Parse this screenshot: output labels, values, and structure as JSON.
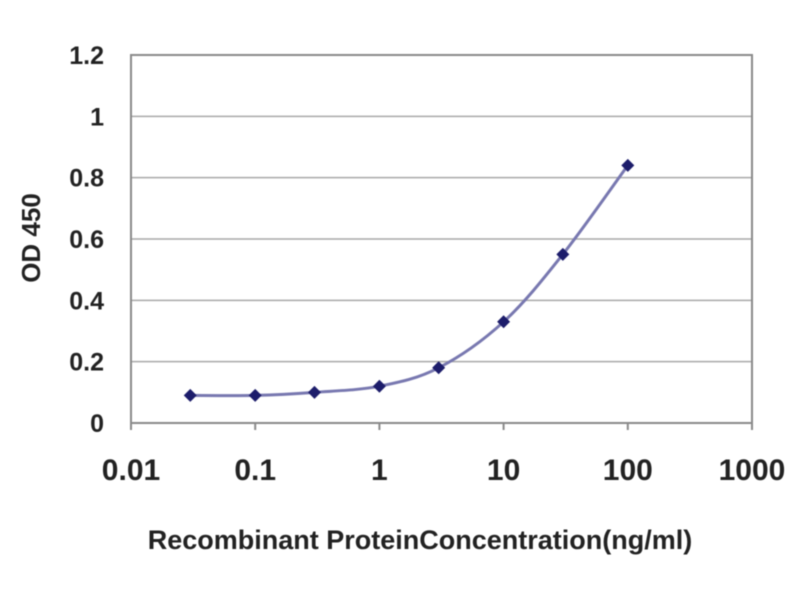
{
  "chart_data": {
    "type": "line",
    "title": "",
    "xlabel": "Recombinant ProteinConcentration(ng/ml)",
    "ylabel": "OD 450",
    "x_scale": "log",
    "y_scale": "linear",
    "xlim": [
      0.01,
      1000
    ],
    "ylim": [
      0,
      1.2
    ],
    "grid": "horizontal",
    "legend": "none",
    "x_ticks": [
      {
        "value": 0.01,
        "label": "0.01"
      },
      {
        "value": 0.1,
        "label": "0.1"
      },
      {
        "value": 1,
        "label": "1"
      },
      {
        "value": 10,
        "label": "10"
      },
      {
        "value": 100,
        "label": "100"
      },
      {
        "value": 1000,
        "label": "1000"
      }
    ],
    "y_ticks": [
      {
        "value": 0,
        "label": "0"
      },
      {
        "value": 0.2,
        "label": "0.2"
      },
      {
        "value": 0.4,
        "label": "0.4"
      },
      {
        "value": 0.6,
        "label": "0.6"
      },
      {
        "value": 0.8,
        "label": "0.8"
      },
      {
        "value": 1,
        "label": "1"
      },
      {
        "value": 1.2,
        "label": "1.2"
      }
    ],
    "series": [
      {
        "name": "OD 450",
        "marker": "diamond",
        "x": [
          0.03,
          0.1,
          0.3,
          1,
          3,
          10,
          30,
          100
        ],
        "y": [
          0.09,
          0.09,
          0.1,
          0.12,
          0.18,
          0.33,
          0.55,
          0.84
        ]
      }
    ],
    "colors": {
      "line": "#7878b0",
      "marker": "#1d1d6b",
      "grid": "#a8a8a8",
      "axis": "#8a8a8a",
      "text": "#222222",
      "background": "#ffffff"
    }
  }
}
